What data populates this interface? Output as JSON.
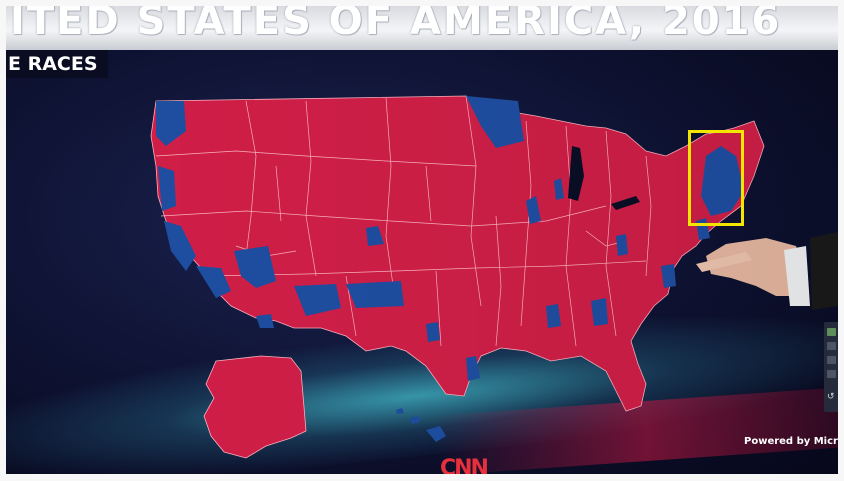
{
  "banner": {
    "title": "ITED STATES OF AMERICA, 2016"
  },
  "subtitle": "E RACES",
  "footer": {
    "powered_by": "Powered by Micros",
    "network": "CNN"
  },
  "colors": {
    "republican": "#d21f48",
    "democrat": "#1f4fa3",
    "border": "#ffb3c3",
    "highlight": "#f2e600"
  },
  "icons": {
    "sidebar_bottom": "undo-icon"
  }
}
